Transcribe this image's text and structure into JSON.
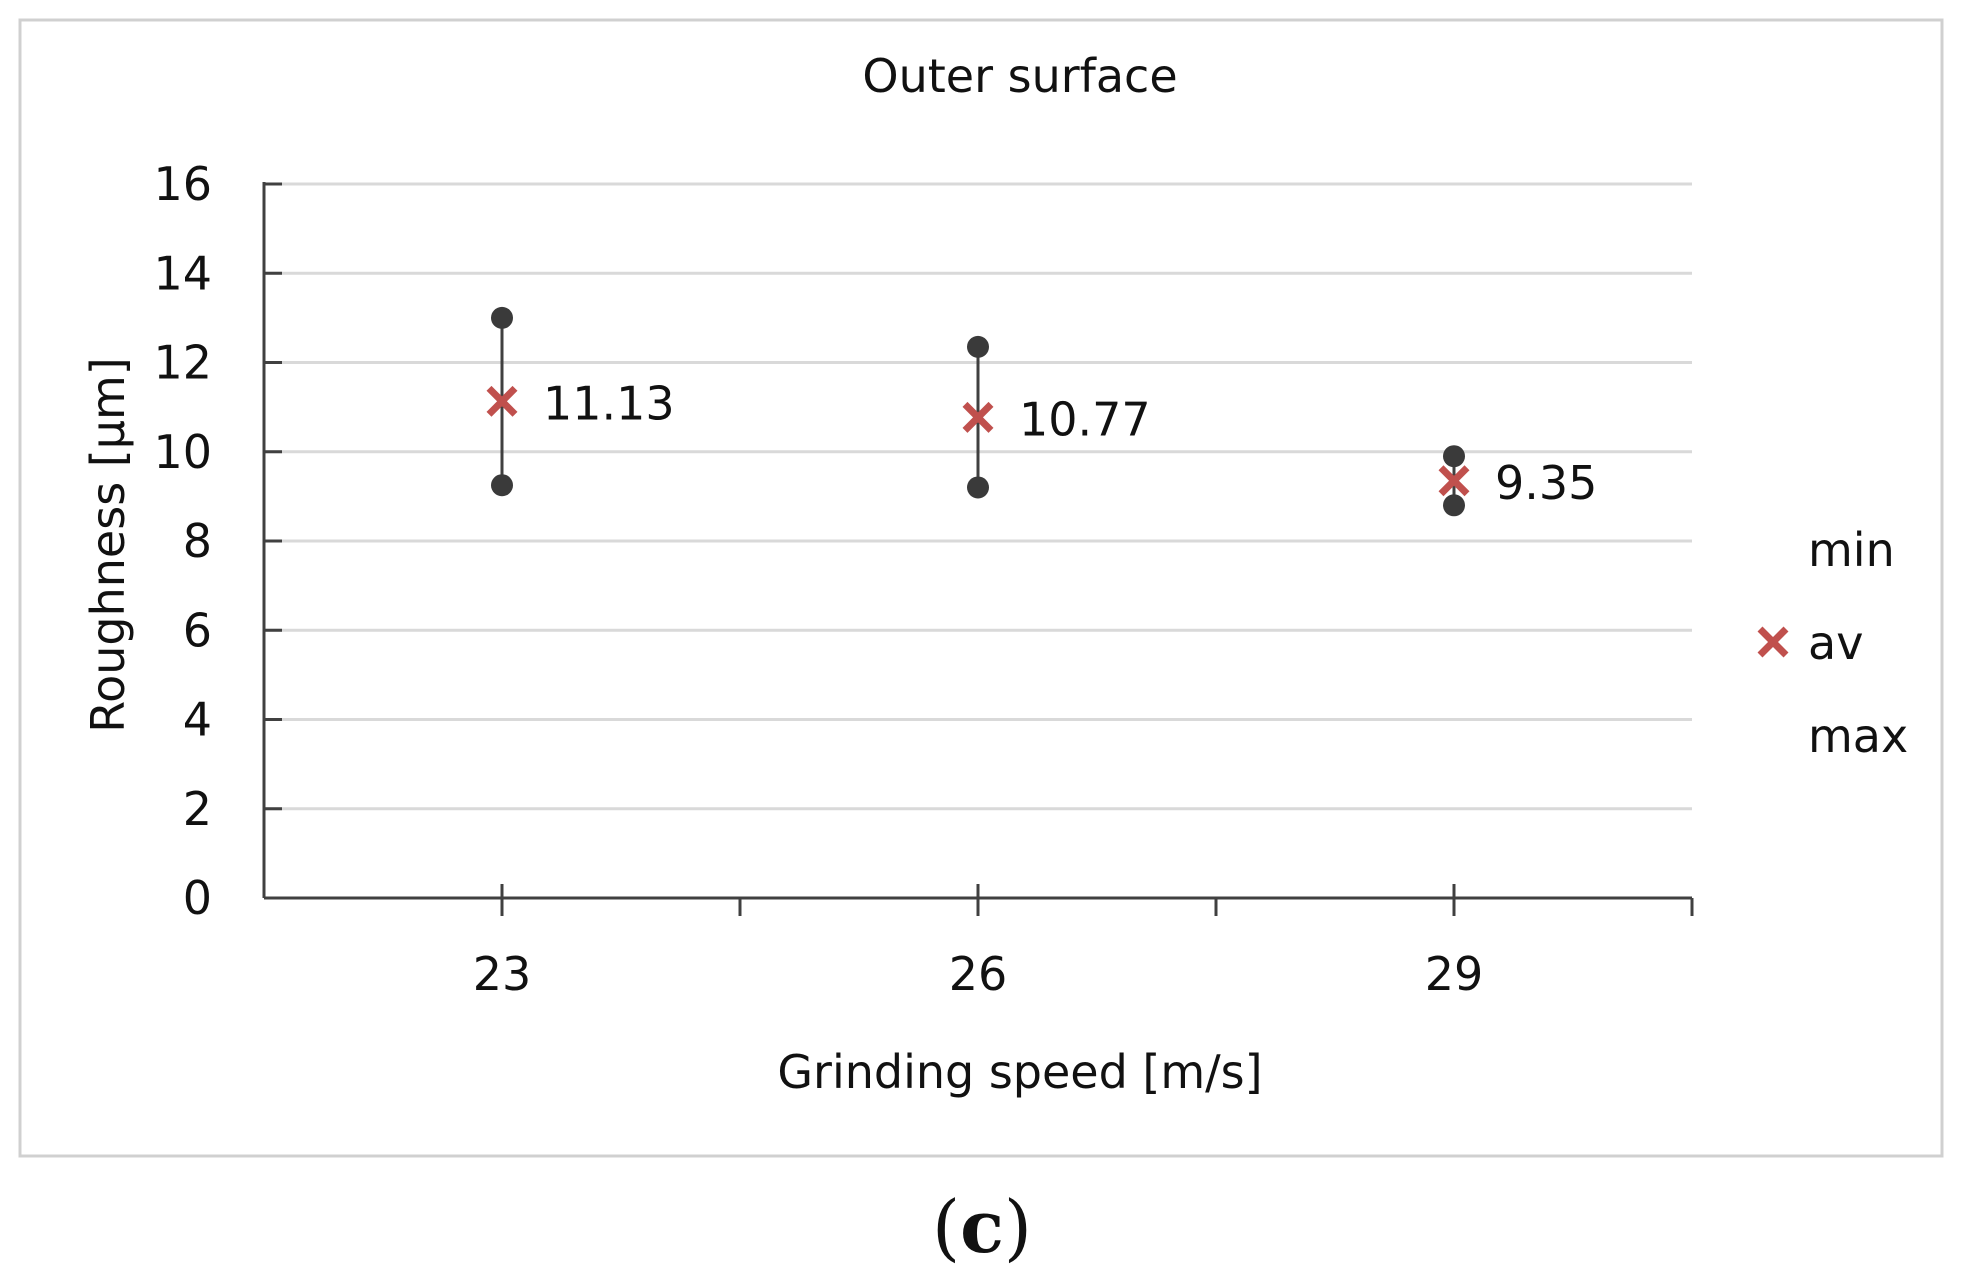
{
  "chart_data": {
    "type": "scatter",
    "title": "Outer surface",
    "xlabel": "Grinding speed [m/s]",
    "ylabel": "Roughness [µm]",
    "categories": [
      "23",
      "26",
      "29"
    ],
    "ylim": [
      0,
      16
    ],
    "yticks": [
      "0",
      "2",
      "4",
      "6",
      "8",
      "10",
      "12",
      "14",
      "16"
    ],
    "grid": true,
    "legend_position": "right",
    "series": [
      {
        "name": "min",
        "values": [
          9.25,
          9.2,
          8.8
        ]
      },
      {
        "name": "av",
        "values": [
          11.13,
          10.77,
          9.35
        ]
      },
      {
        "name": "max",
        "values": [
          13.0,
          12.35,
          9.9
        ]
      }
    ],
    "data_labels": [
      "11.13",
      "10.77",
      "9.35"
    ],
    "colors": {
      "marker": "#3a3a3a",
      "average": "#c0504d",
      "grid": "#d9d9d9",
      "axis": "#404040",
      "frame": "#d0d0d0"
    }
  },
  "caption": {
    "open": "(",
    "letter": "c",
    "close": ")"
  }
}
